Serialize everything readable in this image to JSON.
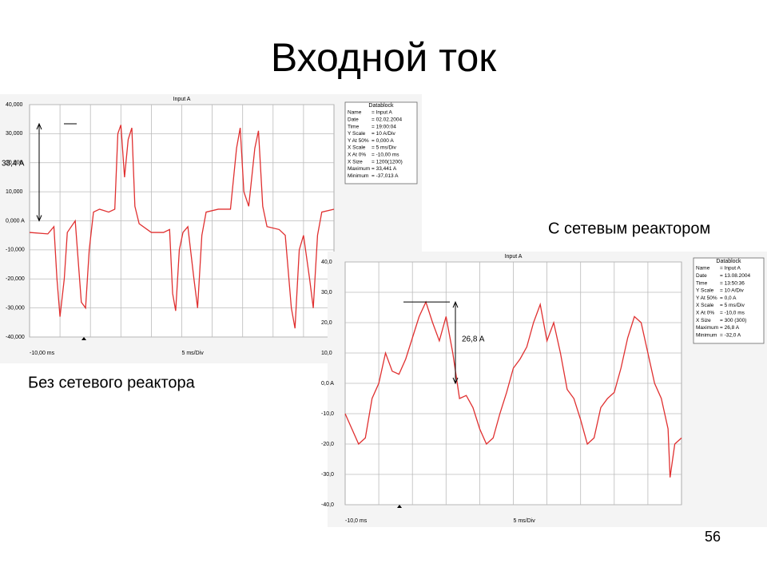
{
  "slide": {
    "title": "Входной ток",
    "page_number": "56",
    "captions": [
      "Без сетевого реактора",
      "С сетевым реактором"
    ]
  },
  "chart_data": [
    {
      "type": "line",
      "title": "Input A",
      "color": "#e03030",
      "xlim": [
        -10,
        40
      ],
      "ylim": [
        -40,
        40
      ],
      "yticks": [
        {
          "value": 40,
          "label": "40,000"
        },
        {
          "value": 30,
          "label": "30,000"
        },
        {
          "value": 20,
          "label": "20,000"
        },
        {
          "value": 10,
          "label": "10,000"
        },
        {
          "value": 0,
          "label": "0,000 A"
        },
        {
          "value": -10,
          "label": "-10,000"
        },
        {
          "value": -20,
          "label": "-20,000"
        },
        {
          "value": -30,
          "label": "-30,000"
        },
        {
          "value": -40,
          "label": "-40,000"
        }
      ],
      "x_labels": [
        "-10,00 ms",
        "5 ms/Div"
      ],
      "grid": true,
      "annotation": {
        "text": "33,4 A",
        "value": 33.4
      },
      "datablock": {
        "title": "Datablock",
        "rows": [
          [
            "Name",
            "= Input A"
          ],
          [
            "Date",
            "= 02.02.2004"
          ],
          [
            "Time",
            "= 19:00:04"
          ],
          [
            "Y Scale",
            "= 10 A/Div"
          ],
          [
            "Y At 50%",
            "= 0,000 A"
          ],
          [
            "X Scale",
            "= 5 ms/Div"
          ],
          [
            "X At 0%",
            "= -10,00 ms"
          ],
          [
            "X Size",
            "= 1200(1200)"
          ],
          [
            "Maximum",
            "= 33,441 A"
          ],
          [
            "Minimum",
            "= -37,013 A"
          ]
        ]
      },
      "x": [
        -10,
        -7,
        -6,
        -5.5,
        -5,
        -4.3,
        -3.8,
        -2.5,
        -1.5,
        -0.8,
        -0.2,
        0.5,
        1.5,
        3,
        4,
        4.5,
        5,
        5.6,
        6.2,
        6.8,
        7.3,
        8,
        10,
        12,
        13,
        13.5,
        14,
        14.6,
        15.2,
        16,
        17,
        17.6,
        18.3,
        19,
        21,
        23,
        24,
        24.6,
        25.2,
        26,
        27,
        27.6,
        28.3,
        29,
        31,
        32,
        33,
        33.6,
        34.3,
        35,
        36,
        36.6,
        37.3,
        38,
        40
      ],
      "values": [
        -4,
        -4.5,
        -2,
        -20,
        -33,
        -20,
        -4,
        0,
        -28,
        -30,
        -10,
        3,
        4,
        3,
        4,
        30,
        33,
        15,
        28,
        32,
        5,
        -1,
        -4,
        -4,
        -3,
        -25,
        -31,
        -10,
        -4,
        -2,
        -20,
        -30,
        -5,
        3,
        4,
        4,
        25,
        32,
        10,
        5,
        25,
        31,
        5,
        -2,
        -3,
        -5,
        -30,
        -37,
        -10,
        -5,
        -20,
        -30,
        -5,
        3,
        4
      ]
    },
    {
      "type": "line",
      "title": "Input A",
      "color": "#e03030",
      "xlim": [
        -10,
        40
      ],
      "ylim": [
        -40,
        40
      ],
      "yticks": [
        {
          "value": 40,
          "label": "40,0"
        },
        {
          "value": 30,
          "label": "30,0"
        },
        {
          "value": 20,
          "label": "20,0"
        },
        {
          "value": 10,
          "label": "10,0"
        },
        {
          "value": 0,
          "label": "0,0 A"
        },
        {
          "value": -10,
          "label": "-10,0"
        },
        {
          "value": -20,
          "label": "-20,0"
        },
        {
          "value": -30,
          "label": "-30,0"
        },
        {
          "value": -40,
          "label": "-40,0"
        }
      ],
      "x_labels": [
        "-10,0 ms",
        "5 ms/Div"
      ],
      "grid": true,
      "annotation": {
        "text": "26,8 A",
        "value": 26.8
      },
      "datablock": {
        "title": "Datablock",
        "rows": [
          [
            "Name",
            "= Input A"
          ],
          [
            "Date",
            "= 13.08.2004"
          ],
          [
            "Time",
            "= 13:50:36"
          ],
          [
            "Y Scale",
            "= 10 A/Div"
          ],
          [
            "Y At 50%",
            "= 0,0 A"
          ],
          [
            "X Scale",
            "= 5 ms/Div"
          ],
          [
            "X At 0%",
            "= -10,0 ms"
          ],
          [
            "X Size",
            "= 300 (300)"
          ],
          [
            "Maximum",
            "= 26,8 A"
          ],
          [
            "Minimum",
            "= -32,0 A"
          ]
        ]
      },
      "x": [
        -10,
        -9,
        -8,
        -7,
        -6,
        -5,
        -4,
        -3,
        -2,
        -1,
        0,
        1,
        2,
        3,
        4,
        5,
        6,
        7,
        8,
        9,
        10,
        11,
        12,
        13,
        14,
        15,
        16,
        17,
        18,
        19,
        20,
        21,
        22,
        23,
        24,
        25,
        26,
        27,
        28,
        29,
        30,
        31,
        32,
        33,
        34,
        35,
        36,
        37,
        38,
        38.3,
        39,
        40
      ],
      "values": [
        -10,
        -15,
        -20,
        -18,
        -5,
        0,
        10,
        4,
        3,
        8,
        15,
        22,
        26.8,
        20,
        14,
        22,
        10,
        -5,
        -4,
        -8,
        -15,
        -20,
        -18,
        -10,
        -3,
        5,
        8,
        12,
        20,
        26,
        14,
        20,
        10,
        -2,
        -5,
        -12,
        -20,
        -18,
        -8,
        -5,
        -3,
        5,
        15,
        22,
        20,
        10,
        0,
        -5,
        -15,
        -31,
        -20,
        -18
      ]
    }
  ]
}
